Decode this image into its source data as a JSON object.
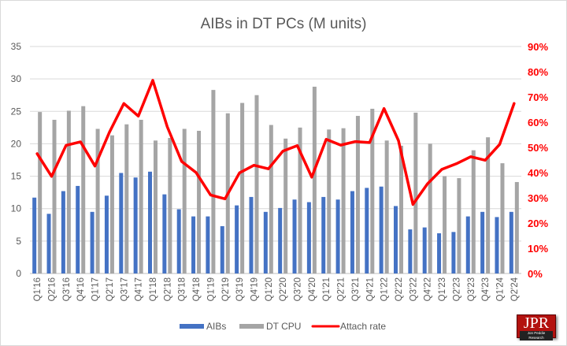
{
  "chart_data": {
    "type": "bar+line",
    "title": "AIBs in DT PCs (M units)",
    "categories": [
      "Q1'16",
      "Q2'16",
      "Q3'16",
      "Q4'16",
      "Q1'17",
      "Q2'17",
      "Q3'17",
      "Q4'17",
      "Q1'18",
      "Q2'18",
      "Q3'18",
      "Q4'18",
      "Q1'19",
      "Q2'19",
      "Q3'19",
      "Q4'19",
      "Q1'20",
      "Q2'20",
      "Q3'20",
      "Q4'20",
      "Q1'21",
      "Q2'21",
      "Q3'21",
      "Q4'21",
      "Q1'22",
      "Q2'22",
      "Q3'22",
      "Q4'22",
      "Q1'23",
      "Q2'23",
      "Q3'23",
      "Q4'23",
      "Q1'24",
      "Q2'24"
    ],
    "series": [
      {
        "name": "AIBs",
        "type": "bar",
        "axis": "left",
        "color": "#4472C4",
        "values": [
          11.7,
          9.2,
          12.7,
          13.5,
          9.5,
          12.0,
          15.5,
          14.8,
          15.7,
          12.2,
          9.9,
          8.8,
          8.8,
          7.3,
          10.5,
          11.8,
          9.5,
          10.1,
          11.4,
          11.0,
          11.8,
          11.4,
          12.7,
          13.2,
          13.4,
          10.4,
          6.8,
          7.1,
          6.2,
          6.4,
          8.8,
          9.5,
          8.7,
          9.5
        ]
      },
      {
        "name": "DT CPU",
        "type": "bar",
        "axis": "left",
        "color": "#A5A5A5",
        "values": [
          24.9,
          23.7,
          25.1,
          25.8,
          22.3,
          21.3,
          23.0,
          23.7,
          20.5,
          20.9,
          22.3,
          22.0,
          28.3,
          24.7,
          26.3,
          27.5,
          22.9,
          20.8,
          22.5,
          28.8,
          22.2,
          22.4,
          24.3,
          25.4,
          20.5,
          19.7,
          24.8,
          20.0,
          15.0,
          14.7,
          19.0,
          21.0,
          17.0,
          14.1
        ]
      },
      {
        "name": "Attach rate",
        "type": "line",
        "axis": "right",
        "color": "#FF0000",
        "values": [
          47.5,
          38.5,
          50.8,
          52.2,
          42.6,
          56.0,
          67.4,
          62.4,
          76.6,
          58.2,
          44.4,
          40.0,
          31.1,
          29.6,
          39.9,
          42.9,
          41.5,
          48.5,
          50.7,
          38.2,
          53.2,
          50.9,
          52.3,
          51.9,
          65.4,
          52.7,
          27.4,
          35.5,
          41.3,
          43.5,
          46.3,
          44.9,
          51.2,
          67.4
        ]
      }
    ],
    "left_axis": {
      "ylim": [
        0,
        35
      ],
      "ticks": [
        "0",
        "5",
        "10",
        "15",
        "20",
        "25",
        "30",
        "35"
      ]
    },
    "right_axis": {
      "ylim": [
        0,
        90
      ],
      "ticks": [
        "0%",
        "10%",
        "20%",
        "30%",
        "40%",
        "50%",
        "60%",
        "70%",
        "80%",
        "90%"
      ],
      "color": "#FF0000"
    },
    "grid": true,
    "legend": "bottom"
  },
  "logo": {
    "text": "JPR",
    "subtext": "Jon Peddie Research"
  }
}
